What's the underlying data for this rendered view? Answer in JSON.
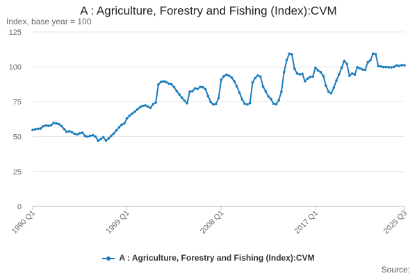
{
  "chart_data": {
    "type": "line",
    "title": "A : Agriculture, Forestry and Fishing (Index):CVM",
    "ylabel": "Index, base year = 100",
    "xlabel": "",
    "ylim": [
      0,
      125
    ],
    "yticks": [
      0,
      25,
      50,
      75,
      100,
      125
    ],
    "x_tick_labels": [
      "1990 Q1",
      "1999 Q1",
      "2008 Q1",
      "2017 Q1",
      "2025 Q3"
    ],
    "x_range": [
      "1990 Q1",
      "2025 Q3"
    ],
    "grid": "horizontal",
    "legend_position": "bottom",
    "series": [
      {
        "name": "A : Agriculture, Forestry and Fishing (Index):CVM",
        "color": "#1a7bbc",
        "values": [
          54.8,
          55.3,
          55.6,
          55.8,
          57.4,
          58.0,
          57.8,
          58.1,
          59.8,
          59.5,
          59.0,
          57.6,
          55.5,
          53.5,
          53.8,
          53.2,
          52.0,
          51.6,
          52.4,
          52.8,
          50.5,
          50.0,
          50.6,
          51.0,
          50.0,
          47.1,
          48.2,
          49.5,
          47.2,
          48.8,
          50.6,
          52.3,
          54.5,
          56.7,
          58.6,
          59.4,
          63.1,
          65.1,
          66.5,
          67.9,
          69.5,
          71.1,
          72.0,
          72.3,
          71.6,
          70.6,
          73.3,
          74.4,
          87.3,
          89.3,
          89.6,
          89.1,
          88.0,
          87.6,
          85.5,
          82.7,
          80.2,
          77.9,
          75.7,
          73.9,
          82.2,
          82.6,
          84.6,
          84.2,
          85.6,
          85.4,
          84.0,
          79.0,
          74.8,
          73.1,
          73.5,
          77.5,
          90.8,
          93.2,
          94.4,
          93.6,
          92.2,
          89.7,
          86.0,
          81.4,
          76.7,
          73.6,
          73.1,
          74.0,
          88.9,
          92.0,
          93.8,
          93.0,
          85.8,
          82.5,
          78.8,
          77.0,
          73.6,
          73.3,
          76.2,
          82.2,
          96.2,
          104.7,
          109.4,
          109.0,
          98.6,
          95.3,
          94.6,
          95.0,
          89.7,
          91.6,
          92.8,
          93.0,
          99.4,
          97.4,
          96.2,
          93.5,
          86.5,
          82.1,
          81.1,
          85.1,
          90.2,
          94.6,
          99.3,
          104.3,
          102.0,
          93.6,
          95.2,
          94.5,
          99.7,
          98.9,
          98.1,
          97.9,
          103.3,
          104.7,
          109.5,
          109.1,
          100.6,
          100.3,
          99.8,
          99.8,
          99.7,
          99.6,
          100.0,
          101.1,
          100.7,
          101.3,
          101.1
        ]
      }
    ]
  },
  "legend": {
    "label": "A : Agriculture, Forestry and Fishing (Index):CVM"
  },
  "source": {
    "label": "Source:"
  }
}
